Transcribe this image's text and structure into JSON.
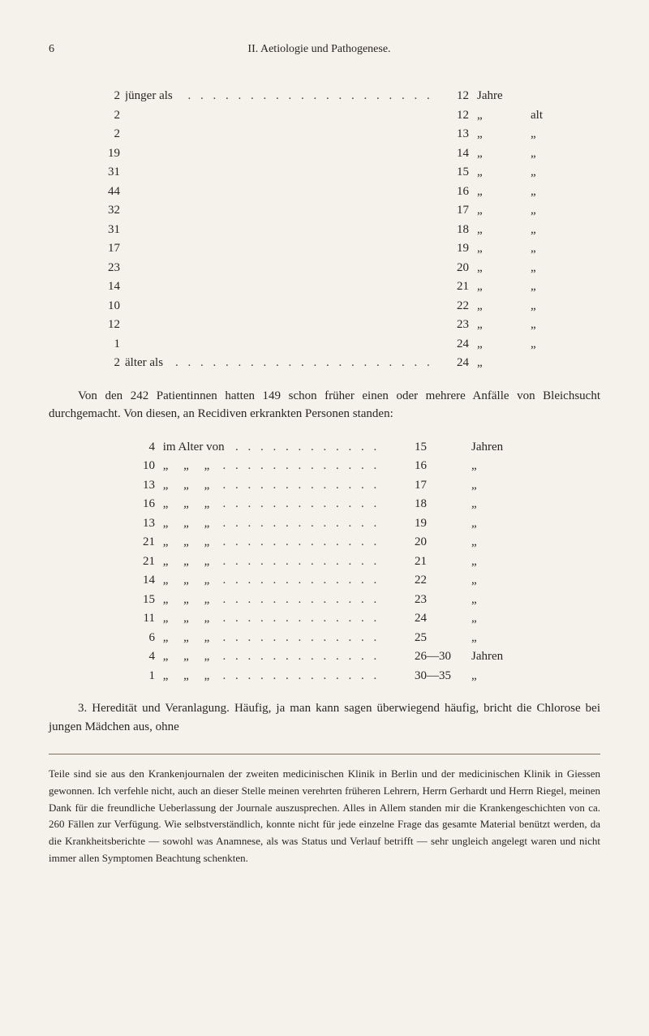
{
  "header": {
    "page_number": "6",
    "section": "II. Aetiologie und Pathogenese."
  },
  "table1": {
    "first_label": "jünger als",
    "last_label": "älter als",
    "unit_first": "Jahre",
    "unit_ditto": "„",
    "extra_alt": "alt",
    "rows": [
      {
        "left": "2",
        "mid": "jünger als",
        "right": "12",
        "unit": "Jahre",
        "extra": ""
      },
      {
        "left": "2",
        "mid": "",
        "right": "12",
        "unit": "„",
        "extra": "alt"
      },
      {
        "left": "2",
        "mid": "",
        "right": "13",
        "unit": "„",
        "extra": "„"
      },
      {
        "left": "19",
        "mid": "",
        "right": "14",
        "unit": "„",
        "extra": "„"
      },
      {
        "left": "31",
        "mid": "",
        "right": "15",
        "unit": "„",
        "extra": "„"
      },
      {
        "left": "44",
        "mid": "",
        "right": "16",
        "unit": "„",
        "extra": "„"
      },
      {
        "left": "32",
        "mid": "",
        "right": "17",
        "unit": "„",
        "extra": "„"
      },
      {
        "left": "31",
        "mid": "",
        "right": "18",
        "unit": "„",
        "extra": "„"
      },
      {
        "left": "17",
        "mid": "",
        "right": "19",
        "unit": "„",
        "extra": "„"
      },
      {
        "left": "23",
        "mid": "",
        "right": "20",
        "unit": "„",
        "extra": "„"
      },
      {
        "left": "14",
        "mid": "",
        "right": "21",
        "unit": "„",
        "extra": "„"
      },
      {
        "left": "10",
        "mid": "",
        "right": "22",
        "unit": "„",
        "extra": "„"
      },
      {
        "left": "12",
        "mid": "",
        "right": "23",
        "unit": "„",
        "extra": "„"
      },
      {
        "left": "1",
        "mid": "",
        "right": "24",
        "unit": "„",
        "extra": "„"
      },
      {
        "left": "2",
        "mid": "älter als",
        "right": "24",
        "unit": "„",
        "extra": ""
      }
    ]
  },
  "para1": "Von den 242 Patientinnen hatten 149 schon früher einen oder mehrere Anfälle von Bleichsucht durchgemacht. Von diesen, an Recidiven erkrankten Personen standen:",
  "table2": {
    "first_label": "im Alter von",
    "unit_first": "Jahren",
    "rows": [
      {
        "left": "4",
        "mid": "im Alter von",
        "right": "15",
        "unit": "Jahren"
      },
      {
        "left": "10",
        "mid": "„     „     „",
        "right": "16",
        "unit": "„"
      },
      {
        "left": "13",
        "mid": "„     „     „",
        "right": "17",
        "unit": "„"
      },
      {
        "left": "16",
        "mid": "„     „     „",
        "right": "18",
        "unit": "„"
      },
      {
        "left": "13",
        "mid": "„     „     „",
        "right": "19",
        "unit": "„"
      },
      {
        "left": "21",
        "mid": "„     „     „",
        "right": "20",
        "unit": "„"
      },
      {
        "left": "21",
        "mid": "„     „     „",
        "right": "21",
        "unit": "„"
      },
      {
        "left": "14",
        "mid": "„     „     „",
        "right": "22",
        "unit": "„"
      },
      {
        "left": "15",
        "mid": "„     „     „",
        "right": "23",
        "unit": "„"
      },
      {
        "left": "11",
        "mid": "„     „     „",
        "right": "24",
        "unit": "„"
      },
      {
        "left": "6",
        "mid": "„     „     „",
        "right": "25",
        "unit": "„"
      },
      {
        "left": "4",
        "mid": "„     „     „",
        "right": "26—30",
        "unit": "Jahren"
      },
      {
        "left": "1",
        "mid": "„     „     „",
        "right": "30—35",
        "unit": "„"
      }
    ]
  },
  "para2": "3. Heredität und Veranlagung. Häufig, ja man kann sagen überwiegend häufig, bricht die Chlorose bei jungen Mädchen aus, ohne",
  "footnote": "Teile sind sie aus den Krankenjournalen der zweiten medicinischen Klinik in Berlin und der medicinischen Klinik in Giessen gewonnen. Ich verfehle nicht, auch an dieser Stelle meinen verehrten früheren Lehrern, Herrn Gerhardt und Herrn Riegel, meinen Dank für die freundliche Ueberlassung der Journale auszusprechen. Alles in Allem standen mir die Krankengeschichten von ca. 260 Fällen zur Verfügung. Wie selbstverständlich, konnte nicht für jede einzelne Frage das gesamte Material benützt werden, da die Krankheitsberichte — sowohl was Anamnese, als was Status und Verlauf betrifft — sehr ungleich angelegt waren und nicht immer allen Symptomen Beachtung schenkten."
}
